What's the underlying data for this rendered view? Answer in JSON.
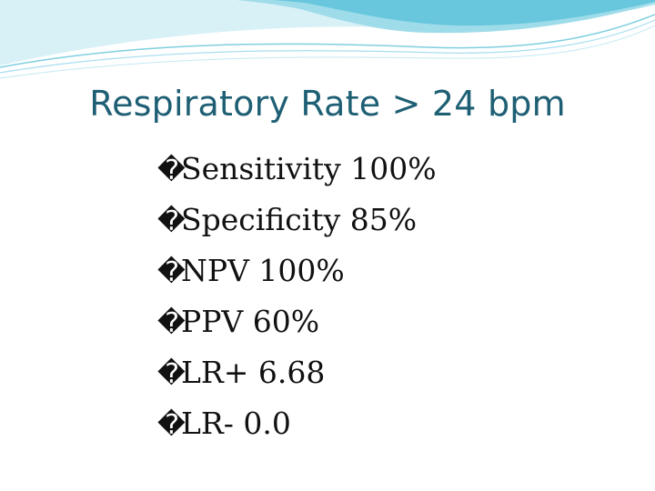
{
  "slide": {
    "title": "Respiratory Rate > 24 bpm",
    "bullet_glyph": "�",
    "bullets": [
      "Sensitivity 100%",
      "Specificity 85%",
      "NPV 100%",
      "PPV 60%",
      "LR+ 6.68",
      "LR- 0.0"
    ]
  },
  "colors": {
    "title": "#1e5f74",
    "wave_light": "#d8f1f7",
    "wave_mid": "#9fdcea",
    "wave_dark": "#56c0d8"
  }
}
